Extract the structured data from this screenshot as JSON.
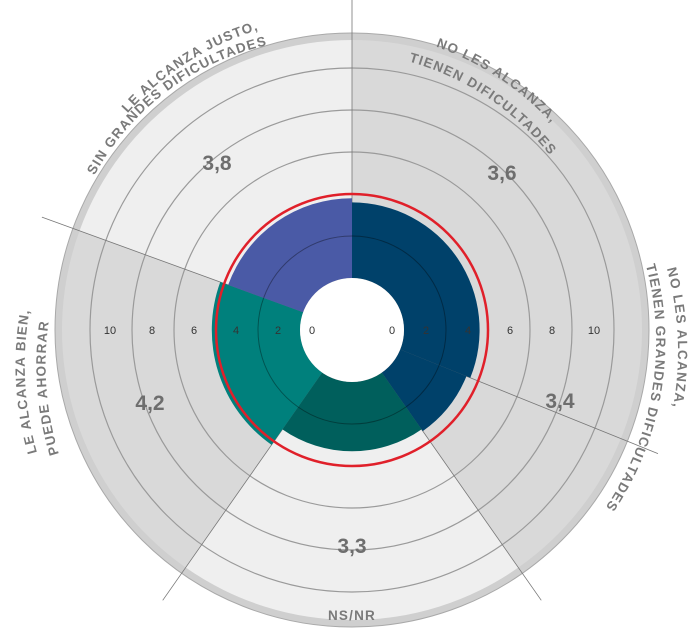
{
  "chart_data": {
    "type": "radial-bar",
    "radial_ticks": [
      "0",
      "2",
      "4",
      "6",
      "8",
      "10"
    ],
    "rlim": [
      0,
      10
    ],
    "reference_line": {
      "value": 4.0,
      "color": "#e0202a"
    },
    "categories": [
      {
        "label_lines": [
          "NO LES ALCANZA,",
          "TIENEN DIFICULTADES"
        ],
        "value": 3.6,
        "value_label": "3,6",
        "color": "#00416a",
        "sector_bg": "#d9d9d9"
      },
      {
        "label_lines": [
          "NO LES ALCANZA,",
          "TIENEN GRANDES DIFICULTADES"
        ],
        "value": 3.4,
        "value_label": "3,4",
        "color": "#00416a",
        "sector_bg": "#d9d9d9"
      },
      {
        "label_lines": [
          "NS/NR"
        ],
        "value": 3.3,
        "value_label": "3,3",
        "color": "#005f5c",
        "sector_bg": "#efefef"
      },
      {
        "label_lines": [
          "LE ALCANZA BIEN,",
          "PUEDE AHORRAR"
        ],
        "value": 4.2,
        "value_label": "4,2",
        "color": "#00807c",
        "sector_bg": "#d9d9d9"
      },
      {
        "label_lines": [
          "LE ALCANZA JUSTO,",
          "SIN GRANDES DIFICULTADES"
        ],
        "value": 3.8,
        "value_label": "3,8",
        "color": "#4a5aa6",
        "sector_bg": "#efefef"
      }
    ]
  }
}
